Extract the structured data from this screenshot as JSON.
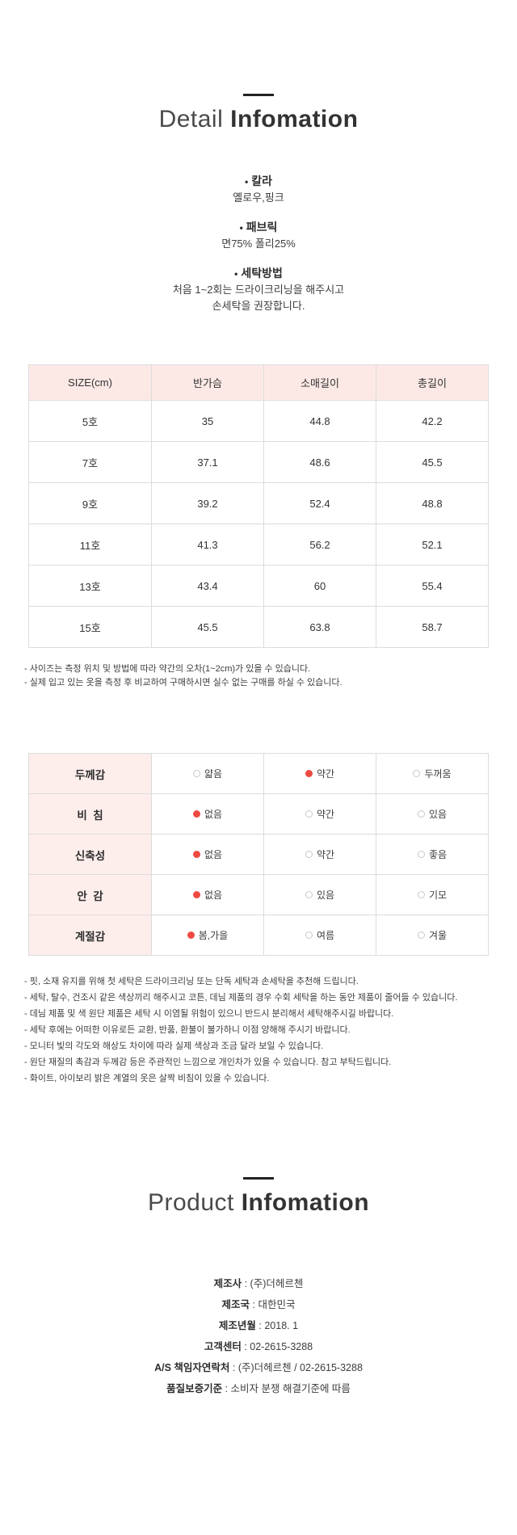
{
  "bullet_char": "•",
  "detail_section": {
    "title_light": "Detail",
    "title_bold": "Infomation",
    "bullets": [
      {
        "label": "칼라",
        "lines": [
          "옐로우,핑크"
        ]
      },
      {
        "label": "패브릭",
        "lines": [
          "면75% 폴리25%"
        ]
      },
      {
        "label": "세탁방법",
        "lines": [
          "처음 1~2회는 드라이크리닝을 해주시고",
          "손세탁을 권장합니다."
        ]
      }
    ],
    "size_table": {
      "headers": [
        "SIZE(cm)",
        "반가슴",
        "소매길이",
        "총길이"
      ],
      "rows": [
        [
          "5호",
          "35",
          "44.8",
          "42.2"
        ],
        [
          "7호",
          "37.1",
          "48.6",
          "45.5"
        ],
        [
          "9호",
          "39.2",
          "52.4",
          "48.8"
        ],
        [
          "11호",
          "41.3",
          "56.2",
          "52.1"
        ],
        [
          "13호",
          "43.4",
          "60",
          "55.4"
        ],
        [
          "15호",
          "45.5",
          "63.8",
          "58.7"
        ]
      ]
    },
    "size_notes": [
      "- 사이즈는 측정 위치 및 방법에 따라 약간의 오차(1~2cm)가 있을 수 있습니다.",
      "- 실제 입고 있는 옷을 측정 후 비교하여 구매하시면 실수 없는 구매를 하실 수 있습니다."
    ],
    "attribute_table": {
      "rows": [
        {
          "label": "두께감",
          "options": [
            {
              "text": "얇음",
              "selected": false
            },
            {
              "text": "약간",
              "selected": true
            },
            {
              "text": "두꺼움",
              "selected": false
            }
          ]
        },
        {
          "label": "비  침",
          "options": [
            {
              "text": "없음",
              "selected": true
            },
            {
              "text": "약간",
              "selected": false
            },
            {
              "text": "있음",
              "selected": false
            }
          ]
        },
        {
          "label": "신축성",
          "options": [
            {
              "text": "없음",
              "selected": true
            },
            {
              "text": "약간",
              "selected": false
            },
            {
              "text": "좋음",
              "selected": false
            }
          ]
        },
        {
          "label": "안  감",
          "options": [
            {
              "text": "없음",
              "selected": true
            },
            {
              "text": "있음",
              "selected": false
            },
            {
              "text": "기모",
              "selected": false
            }
          ]
        },
        {
          "label": "계절감",
          "options": [
            {
              "text": "봄,가을",
              "selected": true
            },
            {
              "text": "여름",
              "selected": false
            },
            {
              "text": "겨울",
              "selected": false
            }
          ]
        }
      ]
    },
    "care_notes": [
      "- 핏, 소재 유지를 위해 첫 세탁은 드라이크리닝 또는 단독 세탁과 손세탁을 추천해 드립니다.",
      "- 세탁, 탈수, 건조시 같은 색상끼리 해주시고 코튼, 데님 제품의 경우 수회 세탁을 하는 동안 제품이 줄어들 수 있습니다.",
      "- 데님 제품 및 색 원단 제품은 세탁 시 이염될 위험이 있으니 반드시 분리해서 세탁해주시길 바랍니다.",
      "- 세탁 후에는 어떠한 이유로든 교환, 반품, 환불이 불가하니 이점 양해해 주시기 바랍니다.",
      "- 모니터 빛의 각도와 해상도 차이에 따라 실제 색상과 조금 달라 보일 수 있습니다.",
      "- 원단 재질의 촉감과 두께감 등은 주관적인 느낌으로 개인차가 있을 수 있습니다. 참고 부탁드립니다.",
      "- 화이트, 아이보리 밝은 계열의 옷은 살짝 비침이 있을 수 있습니다."
    ]
  },
  "product_section": {
    "title_light": "Product",
    "title_bold": "Infomation",
    "separator": " : ",
    "info": [
      {
        "label": "제조사",
        "value": "(주)더헤르첸"
      },
      {
        "label": "제조국",
        "value": "대한민국"
      },
      {
        "label": "제조년월",
        "value": "2018. 1"
      },
      {
        "label": "고객센터",
        "value": "02-2615-3288"
      },
      {
        "label": "A/S 책임자연락처",
        "value": "(주)더헤르첸 / 02-2615-3288"
      },
      {
        "label": "품질보증기준",
        "value": "소비자 분쟁 해결기준에 따름"
      }
    ]
  },
  "colors": {
    "text": "#333333",
    "table_border": "#dcdcdc",
    "size_header_pink": "#fce9e6",
    "attr_label_pink": "#fdeeec",
    "selected_dot_red": "#ee4a41",
    "divider_bar": "#222222"
  }
}
